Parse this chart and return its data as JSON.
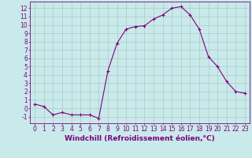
{
  "x": [
    0,
    1,
    2,
    3,
    4,
    5,
    6,
    7,
    8,
    9,
    10,
    11,
    12,
    13,
    14,
    15,
    16,
    17,
    18,
    19,
    20,
    21,
    22,
    23
  ],
  "y": [
    0.5,
    0.2,
    -0.8,
    -0.5,
    -0.8,
    -0.8,
    -0.8,
    -1.2,
    4.5,
    7.8,
    9.5,
    9.8,
    9.9,
    10.7,
    11.2,
    12.0,
    12.2,
    11.2,
    9.5,
    6.2,
    5.0,
    3.2,
    2.0,
    1.8
  ],
  "line_color": "#800080",
  "marker_color": "#800080",
  "bg_color": "#c8eaea",
  "grid_color": "#b0c8c8",
  "xlabel": "Windchill (Refroidissement éolien,°C)",
  "xlim": [
    -0.5,
    23.5
  ],
  "ylim": [
    -1.8,
    12.8
  ],
  "yticks": [
    -1,
    0,
    1,
    2,
    3,
    4,
    5,
    6,
    7,
    8,
    9,
    10,
    11,
    12
  ],
  "xticks": [
    0,
    1,
    2,
    3,
    4,
    5,
    6,
    7,
    8,
    9,
    10,
    11,
    12,
    13,
    14,
    15,
    16,
    17,
    18,
    19,
    20,
    21,
    22,
    23
  ],
  "axis_color": "#800080",
  "label_fontsize": 6.5,
  "tick_fontsize": 5.5,
  "marker_size": 3,
  "line_width": 0.8
}
